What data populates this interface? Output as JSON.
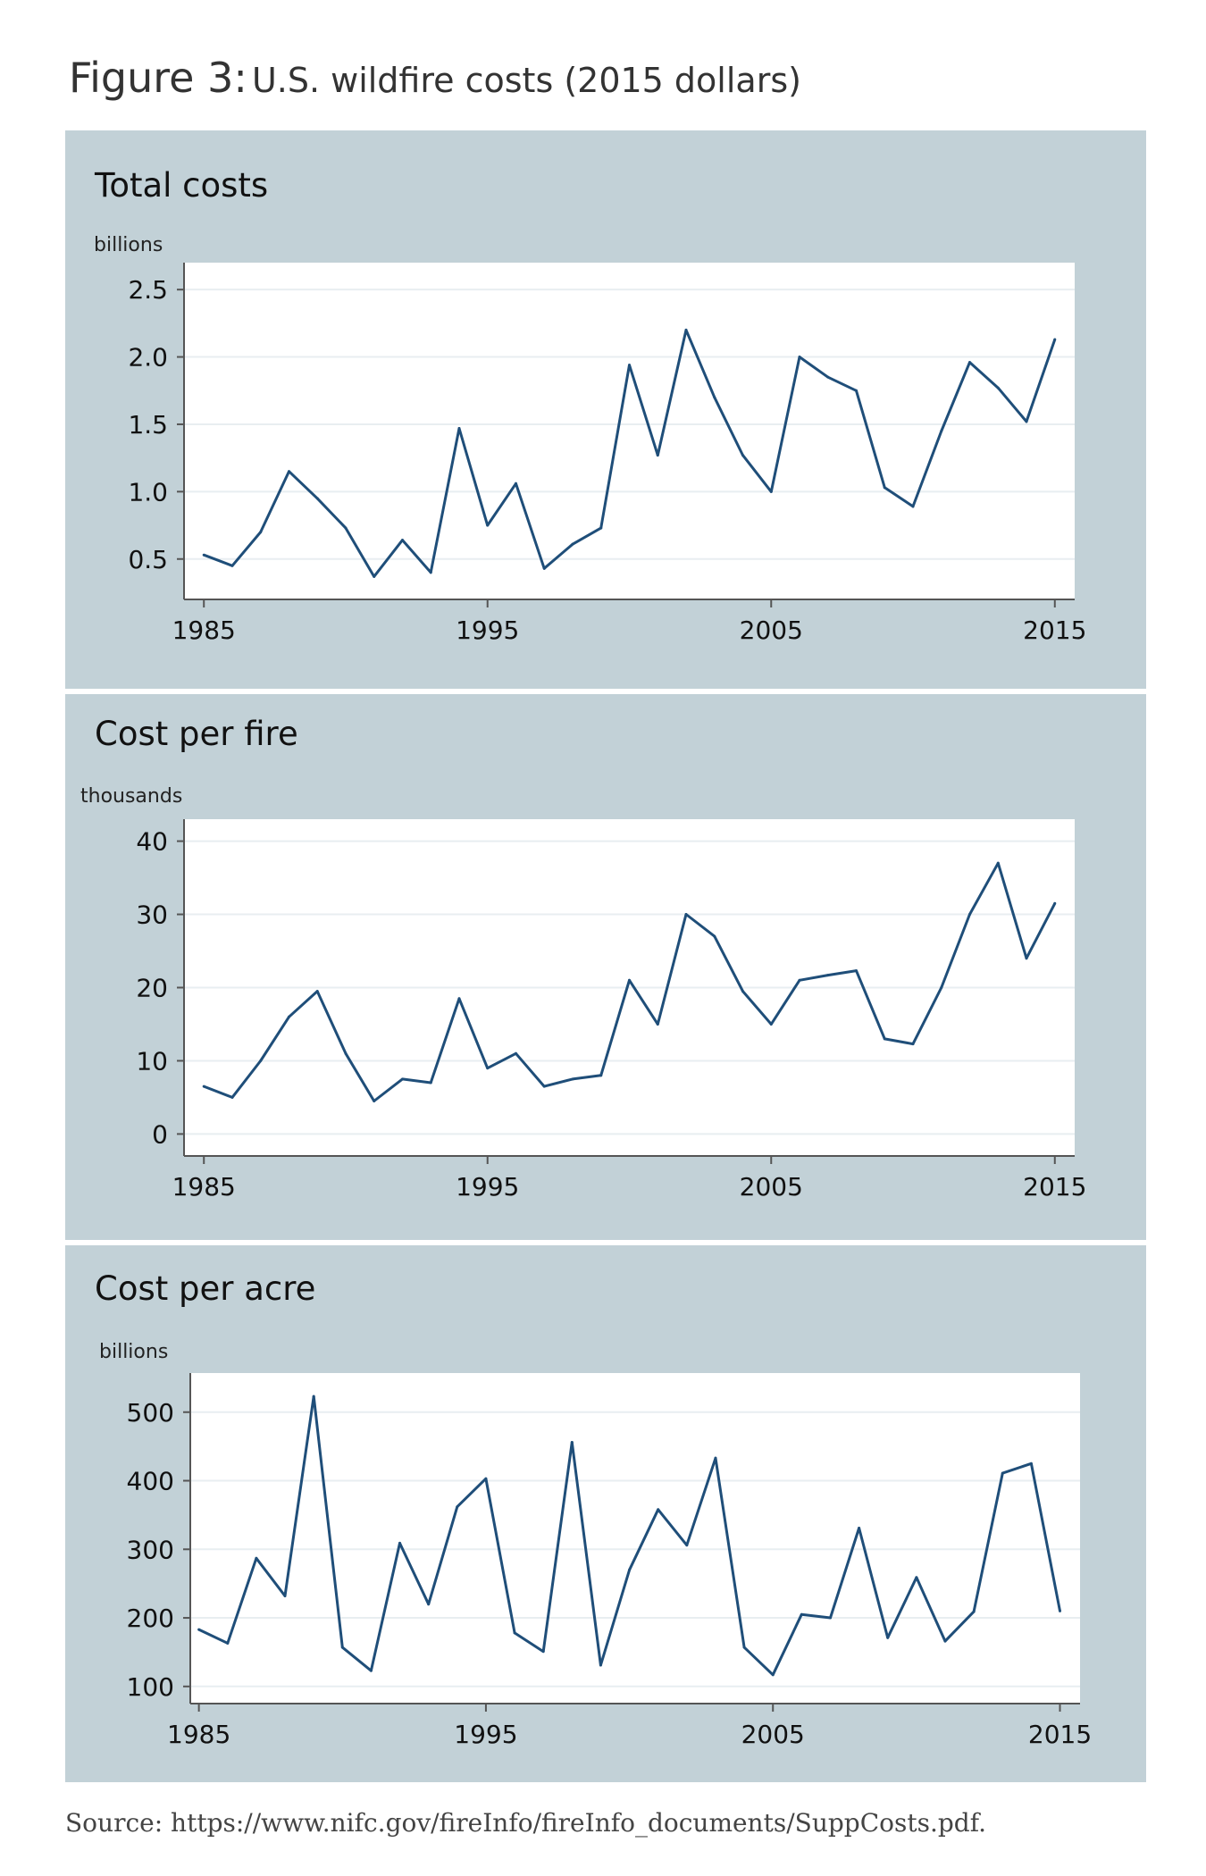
{
  "figure": {
    "title_lead": "Figure 3:",
    "title_rest": "U.S. wildfire costs (2015 dollars)",
    "source": "Source: https://www.nifc.gov/fireInfo/fireInfo_documents/SuppCosts.pdf."
  },
  "colors": {
    "line": "#1f4e79",
    "panel_bg": "#c2d1d7",
    "plot_bg": "#ffffff",
    "grid": "#e8eef1"
  },
  "chart_data": [
    {
      "type": "line",
      "title": "Total costs",
      "ylabel": "billions",
      "x": [
        1985,
        1986,
        1987,
        1988,
        1989,
        1990,
        1991,
        1992,
        1993,
        1994,
        1995,
        1996,
        1997,
        1998,
        1999,
        2000,
        2001,
        2002,
        2003,
        2004,
        2005,
        2006,
        2007,
        2008,
        2009,
        2010,
        2011,
        2012,
        2013,
        2014,
        2015
      ],
      "values": [
        0.53,
        0.45,
        0.7,
        1.15,
        0.95,
        0.73,
        0.37,
        0.64,
        0.4,
        1.47,
        0.75,
        1.06,
        0.43,
        0.61,
        0.73,
        1.94,
        1.27,
        2.2,
        1.7,
        1.27,
        1.0,
        2.0,
        1.85,
        1.75,
        1.03,
        0.89,
        1.45,
        1.96,
        1.77,
        1.52,
        2.13
      ],
      "xticks": [
        1985,
        1995,
        2005,
        2015
      ],
      "yticks": [
        0.5,
        1.0,
        1.5,
        2.0,
        2.5
      ],
      "ytick_labels": [
        "0.5",
        "1.0",
        "1.5",
        "2.0",
        "2.5"
      ],
      "xlim": [
        1984.3,
        2015.7
      ],
      "ylim": [
        0.2,
        2.7
      ],
      "grid": true
    },
    {
      "type": "line",
      "title": "Cost per fire",
      "ylabel": "thousands",
      "x": [
        1985,
        1986,
        1987,
        1988,
        1989,
        1990,
        1991,
        1992,
        1993,
        1994,
        1995,
        1996,
        1997,
        1998,
        1999,
        2000,
        2001,
        2002,
        2003,
        2004,
        2005,
        2006,
        2007,
        2008,
        2009,
        2010,
        2011,
        2012,
        2013,
        2014,
        2015
      ],
      "values": [
        6.5,
        5.0,
        10.0,
        16.0,
        19.5,
        11.0,
        4.5,
        7.5,
        7.0,
        18.5,
        9.0,
        11.0,
        6.5,
        7.5,
        8.0,
        21.0,
        15.0,
        30.0,
        27.0,
        19.5,
        15.0,
        21.0,
        21.7,
        22.3,
        13.0,
        12.3,
        20.0,
        30.0,
        37.0,
        24.0,
        31.5
      ],
      "xticks": [
        1985,
        1995,
        2005,
        2015
      ],
      "yticks": [
        0,
        10,
        20,
        30,
        40
      ],
      "ytick_labels": [
        "0",
        "10",
        "20",
        "30",
        "40"
      ],
      "xlim": [
        1984.3,
        2015.7
      ],
      "ylim": [
        -3,
        43
      ],
      "grid": true
    },
    {
      "type": "line",
      "title": "Cost per acre",
      "ylabel": "billions",
      "x": [
        1985,
        1986,
        1987,
        1988,
        1989,
        1990,
        1991,
        1992,
        1993,
        1994,
        1995,
        1996,
        1997,
        1998,
        1999,
        2000,
        2001,
        2002,
        2003,
        2004,
        2005,
        2006,
        2007,
        2008,
        2009,
        2010,
        2011,
        2012,
        2013,
        2014,
        2015
      ],
      "values": [
        183,
        163,
        287,
        232,
        523,
        157,
        123,
        309,
        220,
        362,
        403,
        178,
        151,
        456,
        131,
        270,
        358,
        306,
        433,
        157,
        117,
        205,
        200,
        331,
        171,
        259,
        166,
        209,
        411,
        425,
        210
      ],
      "xticks": [
        1985,
        1995,
        2005,
        2015
      ],
      "yticks": [
        100,
        200,
        300,
        400,
        500
      ],
      "ytick_labels": [
        "100",
        "200",
        "300",
        "400",
        "500"
      ],
      "xlim": [
        1984.7,
        2015.7
      ],
      "ylim": [
        75,
        557
      ],
      "grid": true
    }
  ]
}
